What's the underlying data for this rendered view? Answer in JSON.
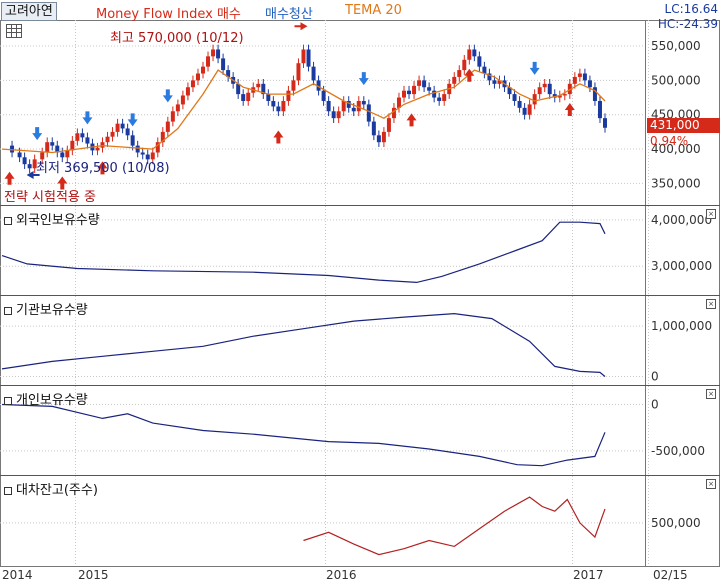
{
  "header": {
    "stock_name": "고려아연",
    "legend": [
      {
        "label": "Money Flow Index 매수",
        "color": "#d52a1a"
      },
      {
        "label": "매수청산",
        "color": "#2060c0"
      },
      {
        "label": "TEMA 20",
        "color": "#e07818"
      }
    ],
    "lc": "LC:16.64",
    "hc": "HC:-24.39"
  },
  "price_tag": {
    "value": "431,000",
    "change": "0.94%"
  },
  "annotations": {
    "high": "최고 570,000 (10/12)",
    "low": "최저 369,500 (10/08)",
    "strategy": "전략 시험적용 중"
  },
  "panels": {
    "foreign": "외국인보유수량",
    "institution": "기관보유수량",
    "individual": "개인보유수량",
    "loan": "대차잔고(주수)"
  },
  "x_labels": [
    "2014",
    "2015",
    "2016",
    "2017",
    "02/15"
  ],
  "colors": {
    "up": "#d52a1a",
    "down": "#1a3aa0",
    "tema": "#e07818",
    "panel_line": "#1a237e",
    "loan_line": "#b22222",
    "buy_arrow": "#d52a1a",
    "sell_arrow": "#2a7ae0"
  },
  "chart_data": [
    {
      "type": "candlestick",
      "title": "고려아연",
      "y_ticks": [
        350000,
        400000,
        450000,
        500000,
        550000
      ],
      "y_tick_labels": [
        "350,000",
        "400,000",
        "450,000",
        "500,000",
        "550,000"
      ],
      "ylim": [
        320000,
        585000
      ],
      "close_path": [
        [
          0,
          405000
        ],
        [
          4,
          395000
        ],
        [
          7,
          388000
        ],
        [
          9,
          378000
        ],
        [
          11,
          372000
        ],
        [
          13,
          385000
        ],
        [
          16,
          395000
        ],
        [
          18,
          410000
        ],
        [
          20,
          405000
        ],
        [
          22,
          395000
        ],
        [
          24,
          388000
        ],
        [
          26,
          398000
        ],
        [
          28,
          412000
        ],
        [
          30,
          423000
        ],
        [
          32,
          417000
        ],
        [
          34,
          408000
        ],
        [
          36,
          398000
        ],
        [
          38,
          402000
        ],
        [
          40,
          410000
        ],
        [
          42,
          418000
        ],
        [
          44,
          425000
        ],
        [
          46,
          437000
        ],
        [
          48,
          430000
        ],
        [
          50,
          420000
        ],
        [
          52,
          405000
        ],
        [
          54,
          395000
        ],
        [
          56,
          392000
        ],
        [
          58,
          385000
        ],
        [
          60,
          395000
        ],
        [
          62,
          410000
        ],
        [
          64,
          425000
        ],
        [
          66,
          440000
        ],
        [
          68,
          455000
        ],
        [
          70,
          465000
        ],
        [
          72,
          478000
        ],
        [
          74,
          490000
        ],
        [
          76,
          500000
        ],
        [
          78,
          510000
        ],
        [
          80,
          520000
        ],
        [
          82,
          535000
        ],
        [
          84,
          545000
        ],
        [
          86,
          532000
        ],
        [
          88,
          515000
        ],
        [
          90,
          505000
        ],
        [
          92,
          495000
        ],
        [
          94,
          480000
        ],
        [
          96,
          470000
        ],
        [
          98,
          482000
        ],
        [
          100,
          490000
        ],
        [
          102,
          495000
        ],
        [
          104,
          480000
        ],
        [
          106,
          470000
        ],
        [
          108,
          462000
        ],
        [
          110,
          455000
        ],
        [
          112,
          470000
        ],
        [
          114,
          485000
        ],
        [
          116,
          500000
        ],
        [
          118,
          525000
        ],
        [
          120,
          545000
        ],
        [
          122,
          520000
        ],
        [
          124,
          500000
        ],
        [
          126,
          485000
        ],
        [
          128,
          470000
        ],
        [
          130,
          455000
        ],
        [
          132,
          445000
        ],
        [
          134,
          455000
        ],
        [
          136,
          470000
        ],
        [
          138,
          460000
        ],
        [
          140,
          455000
        ],
        [
          142,
          470000
        ],
        [
          144,
          465000
        ],
        [
          146,
          440000
        ],
        [
          148,
          420000
        ],
        [
          150,
          410000
        ],
        [
          152,
          425000
        ],
        [
          154,
          445000
        ],
        [
          156,
          460000
        ],
        [
          158,
          475000
        ],
        [
          160,
          485000
        ],
        [
          162,
          480000
        ],
        [
          164,
          492000
        ],
        [
          166,
          500000
        ],
        [
          168,
          490000
        ],
        [
          170,
          485000
        ],
        [
          172,
          475000
        ],
        [
          174,
          470000
        ],
        [
          176,
          480000
        ],
        [
          178,
          495000
        ],
        [
          180,
          505000
        ],
        [
          182,
          515000
        ],
        [
          184,
          530000
        ],
        [
          186,
          545000
        ],
        [
          188,
          535000
        ],
        [
          190,
          520000
        ],
        [
          192,
          510000
        ],
        [
          194,
          500000
        ],
        [
          196,
          495000
        ],
        [
          198,
          500000
        ],
        [
          200,
          490000
        ],
        [
          202,
          480000
        ],
        [
          204,
          470000
        ],
        [
          206,
          460000
        ],
        [
          208,
          450000
        ],
        [
          210,
          465000
        ],
        [
          212,
          480000
        ],
        [
          214,
          490000
        ],
        [
          216,
          495000
        ],
        [
          218,
          480000
        ],
        [
          220,
          475000
        ],
        [
          222,
          478000
        ],
        [
          224,
          480000
        ],
        [
          226,
          495000
        ],
        [
          228,
          505000
        ],
        [
          230,
          510000
        ],
        [
          232,
          500000
        ],
        [
          234,
          490000
        ],
        [
          236,
          470000
        ],
        [
          238,
          445000
        ],
        [
          240,
          431000
        ]
      ],
      "tema_path": [
        [
          0,
          400000
        ],
        [
          20,
          395000
        ],
        [
          40,
          405000
        ],
        [
          60,
          400000
        ],
        [
          70,
          430000
        ],
        [
          80,
          480000
        ],
        [
          86,
          515000
        ],
        [
          96,
          490000
        ],
        [
          106,
          480000
        ],
        [
          116,
          480000
        ],
        [
          124,
          495000
        ],
        [
          136,
          470000
        ],
        [
          146,
          455000
        ],
        [
          152,
          445000
        ],
        [
          160,
          465000
        ],
        [
          170,
          480000
        ],
        [
          180,
          490000
        ],
        [
          188,
          515000
        ],
        [
          196,
          505000
        ],
        [
          206,
          480000
        ],
        [
          212,
          470000
        ],
        [
          222,
          478000
        ],
        [
          230,
          495000
        ],
        [
          236,
          485000
        ],
        [
          240,
          470000
        ]
      ],
      "high_point": {
        "x": 120,
        "y": 570000
      },
      "low_point": {
        "x": 9,
        "y": 369500
      },
      "buy_signals": [
        3,
        24,
        40,
        110,
        163,
        186,
        226
      ],
      "sell_signals": [
        14,
        34,
        52,
        66,
        144,
        212
      ],
      "x_max": 240
    },
    {
      "type": "line",
      "title": "외국인보유수량",
      "y_ticks": [
        3000000,
        4000000
      ],
      "y_tick_labels": [
        "3,000,000",
        "4,000,000"
      ],
      "ylim": [
        2400000,
        4300000
      ],
      "points": [
        [
          0,
          3230000
        ],
        [
          10,
          3050000
        ],
        [
          30,
          2950000
        ],
        [
          60,
          2900000
        ],
        [
          100,
          2870000
        ],
        [
          130,
          2800000
        ],
        [
          150,
          2700000
        ],
        [
          165,
          2650000
        ],
        [
          175,
          2780000
        ],
        [
          190,
          3050000
        ],
        [
          205,
          3350000
        ],
        [
          215,
          3550000
        ],
        [
          222,
          3950000
        ],
        [
          230,
          3950000
        ],
        [
          238,
          3920000
        ],
        [
          240,
          3700000
        ]
      ],
      "x_max": 240
    },
    {
      "type": "line",
      "title": "기관보유수량",
      "y_ticks": [
        0,
        1000000
      ],
      "y_tick_labels": [
        "0",
        "1,000,000"
      ],
      "ylim": [
        -150000,
        1600000
      ],
      "points": [
        [
          0,
          150000
        ],
        [
          20,
          300000
        ],
        [
          40,
          400000
        ],
        [
          60,
          500000
        ],
        [
          80,
          600000
        ],
        [
          100,
          800000
        ],
        [
          120,
          950000
        ],
        [
          140,
          1100000
        ],
        [
          160,
          1180000
        ],
        [
          180,
          1250000
        ],
        [
          195,
          1150000
        ],
        [
          210,
          700000
        ],
        [
          220,
          200000
        ],
        [
          230,
          100000
        ],
        [
          238,
          80000
        ],
        [
          240,
          0
        ]
      ],
      "x_max": 240
    },
    {
      "type": "line",
      "title": "개인보유수량",
      "y_ticks": [
        0,
        -500000
      ],
      "y_tick_labels": [
        "0",
        "-500,000"
      ],
      "ylim": [
        -750000,
        200000
      ],
      "points": [
        [
          0,
          0
        ],
        [
          20,
          -20000
        ],
        [
          40,
          -150000
        ],
        [
          50,
          -100000
        ],
        [
          60,
          -200000
        ],
        [
          80,
          -280000
        ],
        [
          100,
          -320000
        ],
        [
          130,
          -400000
        ],
        [
          150,
          -420000
        ],
        [
          170,
          -480000
        ],
        [
          190,
          -560000
        ],
        [
          205,
          -650000
        ],
        [
          215,
          -660000
        ],
        [
          225,
          -600000
        ],
        [
          236,
          -560000
        ],
        [
          240,
          -300000
        ]
      ],
      "x_max": 240
    },
    {
      "type": "line",
      "title": "대차잔고(주수)",
      "y_ticks": [
        500000
      ],
      "y_tick_labels": [
        "500,000"
      ],
      "ylim": [
        150000,
        900000
      ],
      "points": [
        [
          120,
          350000
        ],
        [
          130,
          420000
        ],
        [
          140,
          320000
        ],
        [
          150,
          230000
        ],
        [
          160,
          280000
        ],
        [
          170,
          350000
        ],
        [
          180,
          300000
        ],
        [
          190,
          450000
        ],
        [
          200,
          600000
        ],
        [
          210,
          720000
        ],
        [
          215,
          640000
        ],
        [
          220,
          600000
        ],
        [
          225,
          700000
        ],
        [
          230,
          500000
        ],
        [
          236,
          380000
        ],
        [
          240,
          620000
        ]
      ],
      "x_start": 95,
      "x_max": 240
    }
  ]
}
